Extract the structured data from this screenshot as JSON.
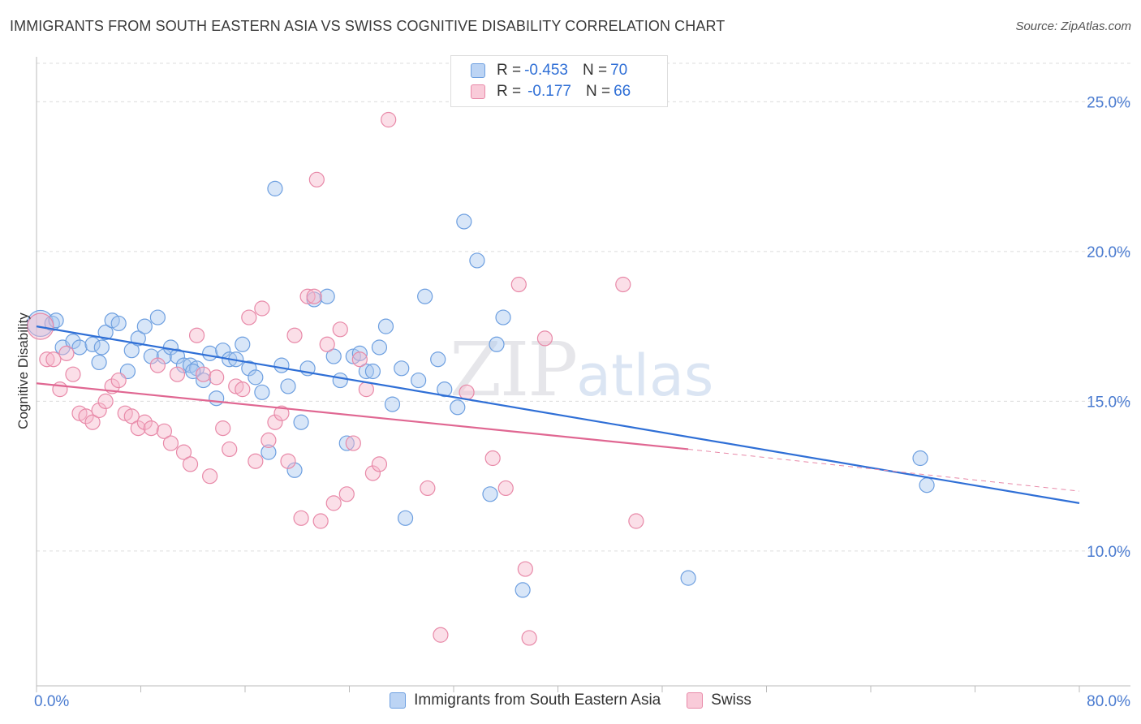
{
  "title": "IMMIGRANTS FROM SOUTH EASTERN ASIA VS SWISS COGNITIVE DISABILITY CORRELATION CHART",
  "source": "Source: ZipAtlas.com",
  "watermark": {
    "zip": "ZIP",
    "atlas": "atlas"
  },
  "legend": [
    {
      "r_label": "R =",
      "r_value": "-0.453",
      "n_label": "N =",
      "n_value": "70",
      "color": "#a9c8f0",
      "border": "#6d9fe0"
    },
    {
      "r_label": "R =",
      "r_value": "-0.177",
      "n_label": "N =",
      "n_value": "66",
      "color": "#f6b8cc",
      "border": "#e889a8"
    }
  ],
  "bottom_legend": [
    "Immigrants from South Eastern Asia",
    "Swiss"
  ],
  "chart_data": {
    "type": "scatter",
    "title": "IMMIGRANTS FROM SOUTH EASTERN ASIA VS SWISS COGNITIVE DISABILITY CORRELATION CHART",
    "xlabel": "",
    "ylabel": "Cognitive Disability",
    "xlim": [
      0,
      80
    ],
    "ylim": [
      5.5,
      26.5
    ],
    "x_tick_labels": [
      "0.0%",
      "80.0%"
    ],
    "y_ticks": [
      10,
      15,
      20,
      25
    ],
    "y_tick_labels": [
      "10.0%",
      "15.0%",
      "20.0%",
      "25.0%"
    ],
    "grid": true,
    "legend_placement": "top-center",
    "series": [
      {
        "name": "Immigrants from South Eastern Asia",
        "color": "#6d9fe0",
        "fill": "#a9c8f0",
        "trend": {
          "x0": 0,
          "y0": 17.5,
          "x1": 80,
          "y1": 11.6
        },
        "points": [
          [
            0.3,
            17.6
          ],
          [
            1.2,
            17.6
          ],
          [
            1.5,
            17.7
          ],
          [
            2.0,
            16.8
          ],
          [
            2.8,
            17.0
          ],
          [
            3.3,
            16.8
          ],
          [
            4.3,
            16.9
          ],
          [
            4.8,
            16.3
          ],
          [
            5.3,
            17.3
          ],
          [
            5.8,
            17.7
          ],
          [
            6.3,
            17.6
          ],
          [
            7.0,
            16.0
          ],
          [
            7.3,
            16.7
          ],
          [
            7.8,
            17.1
          ],
          [
            8.3,
            17.5
          ],
          [
            8.8,
            16.5
          ],
          [
            9.3,
            17.8
          ],
          [
            9.8,
            16.5
          ],
          [
            10.3,
            16.8
          ],
          [
            10.8,
            16.5
          ],
          [
            11.3,
            16.2
          ],
          [
            11.8,
            16.2
          ],
          [
            12.3,
            16.1
          ],
          [
            12.8,
            15.7
          ],
          [
            13.3,
            16.6
          ],
          [
            13.8,
            15.1
          ],
          [
            14.3,
            16.7
          ],
          [
            14.8,
            16.4
          ],
          [
            15.3,
            16.4
          ],
          [
            15.8,
            16.9
          ],
          [
            16.3,
            16.1
          ],
          [
            16.8,
            15.8
          ],
          [
            17.3,
            15.3
          ],
          [
            17.8,
            13.3
          ],
          [
            18.3,
            22.1
          ],
          [
            18.8,
            16.2
          ],
          [
            19.3,
            15.5
          ],
          [
            19.8,
            12.7
          ],
          [
            20.3,
            14.3
          ],
          [
            20.8,
            16.1
          ],
          [
            21.3,
            18.4
          ],
          [
            22.3,
            18.5
          ],
          [
            22.8,
            16.5
          ],
          [
            23.3,
            15.7
          ],
          [
            23.8,
            13.6
          ],
          [
            24.3,
            16.5
          ],
          [
            24.8,
            16.6
          ],
          [
            25.3,
            16.0
          ],
          [
            25.8,
            16.0
          ],
          [
            26.3,
            16.8
          ],
          [
            26.8,
            17.5
          ],
          [
            27.3,
            14.9
          ],
          [
            28.3,
            11.1
          ],
          [
            29.3,
            15.7
          ],
          [
            29.8,
            18.5
          ],
          [
            30.8,
            16.4
          ],
          [
            31.3,
            15.4
          ],
          [
            32.3,
            14.8
          ],
          [
            32.8,
            21.0
          ],
          [
            33.8,
            19.7
          ],
          [
            34.8,
            11.9
          ],
          [
            35.3,
            16.9
          ],
          [
            35.8,
            17.8
          ],
          [
            37.3,
            8.7
          ],
          [
            50.0,
            9.1
          ],
          [
            67.8,
            13.1
          ],
          [
            68.3,
            12.2
          ],
          [
            5.0,
            16.8
          ],
          [
            28.0,
            16.1
          ],
          [
            12.0,
            16.0
          ]
        ]
      },
      {
        "name": "Swiss",
        "color": "#e889a8",
        "fill": "#f6b8cc",
        "trend": {
          "x0": 0,
          "y0": 15.6,
          "x1": 50,
          "y1": 13.4,
          "dash_to_x": 80,
          "dash_to_y": 12.0
        },
        "points": [
          [
            0.3,
            17.5
          ],
          [
            0.8,
            16.4
          ],
          [
            1.3,
            16.4
          ],
          [
            1.8,
            15.4
          ],
          [
            2.3,
            16.6
          ],
          [
            2.8,
            15.9
          ],
          [
            3.3,
            14.6
          ],
          [
            3.8,
            14.5
          ],
          [
            4.3,
            14.3
          ],
          [
            4.8,
            14.7
          ],
          [
            5.3,
            15.0
          ],
          [
            5.8,
            15.5
          ],
          [
            6.3,
            15.7
          ],
          [
            6.8,
            14.6
          ],
          [
            7.3,
            14.5
          ],
          [
            7.8,
            14.1
          ],
          [
            8.3,
            14.3
          ],
          [
            8.8,
            14.1
          ],
          [
            9.3,
            16.2
          ],
          [
            9.8,
            14.0
          ],
          [
            10.3,
            13.6
          ],
          [
            10.8,
            15.9
          ],
          [
            11.3,
            13.3
          ],
          [
            11.8,
            12.9
          ],
          [
            12.3,
            17.2
          ],
          [
            12.8,
            15.9
          ],
          [
            13.3,
            12.5
          ],
          [
            13.8,
            15.8
          ],
          [
            14.3,
            14.1
          ],
          [
            14.8,
            13.4
          ],
          [
            15.3,
            15.5
          ],
          [
            15.8,
            15.4
          ],
          [
            16.3,
            17.8
          ],
          [
            16.8,
            13.0
          ],
          [
            17.3,
            18.1
          ],
          [
            17.8,
            13.7
          ],
          [
            18.3,
            14.3
          ],
          [
            18.8,
            14.6
          ],
          [
            19.3,
            13.0
          ],
          [
            19.8,
            17.2
          ],
          [
            20.3,
            11.1
          ],
          [
            20.8,
            18.5
          ],
          [
            21.3,
            18.5
          ],
          [
            21.8,
            11.0
          ],
          [
            22.3,
            16.9
          ],
          [
            22.8,
            11.6
          ],
          [
            23.3,
            17.4
          ],
          [
            23.8,
            11.9
          ],
          [
            24.3,
            13.6
          ],
          [
            24.8,
            16.4
          ],
          [
            25.3,
            15.4
          ],
          [
            25.8,
            12.6
          ],
          [
            26.3,
            12.9
          ],
          [
            27.0,
            24.4
          ],
          [
            30.0,
            12.1
          ],
          [
            31.0,
            7.2
          ],
          [
            33.0,
            15.3
          ],
          [
            35.0,
            13.1
          ],
          [
            36.0,
            12.1
          ],
          [
            37.0,
            18.9
          ],
          [
            37.5,
            9.4
          ],
          [
            37.8,
            7.1
          ],
          [
            39.0,
            17.1
          ],
          [
            45.0,
            18.9
          ],
          [
            46.0,
            11.0
          ],
          [
            21.5,
            22.4
          ]
        ]
      }
    ]
  }
}
